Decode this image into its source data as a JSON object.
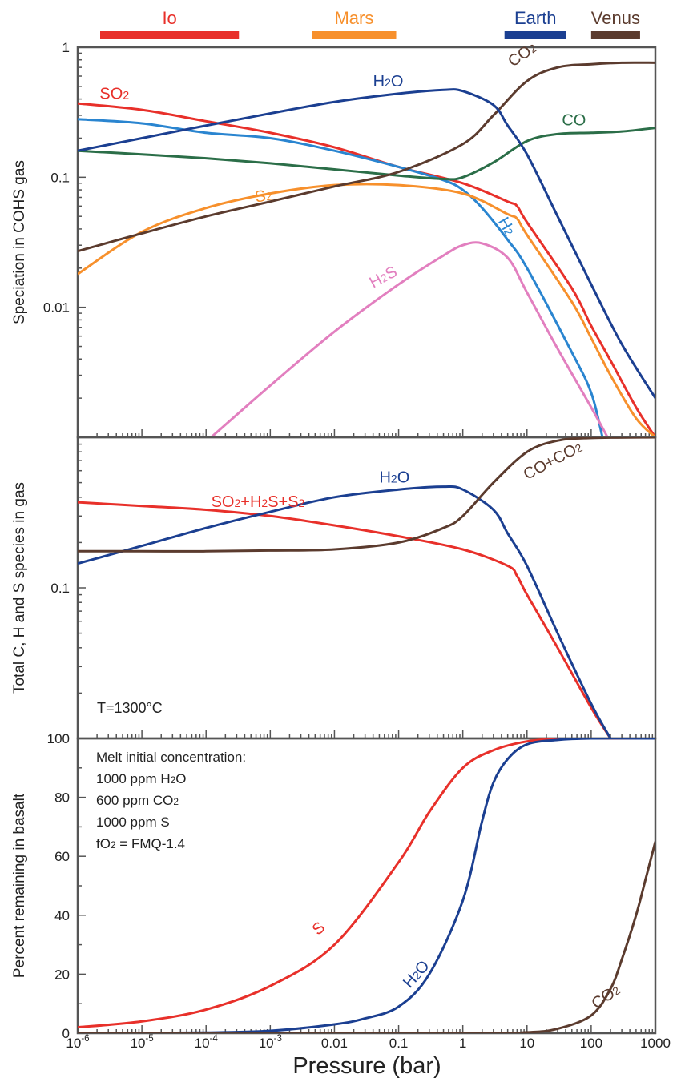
{
  "planets": [
    {
      "name": "Io",
      "color": "#e8302a",
      "range": [
        -6,
        -3.8
      ]
    },
    {
      "name": "Mars",
      "color": "#f7902c",
      "range": [
        -2.7,
        -1.35
      ]
    },
    {
      "name": "Earth",
      "color": "#1b3f91",
      "range": [
        0.3,
        1.3
      ]
    },
    {
      "name": "Venus",
      "color": "#5b3b2e",
      "range": [
        1.65,
        2.45
      ]
    }
  ],
  "x_axis": {
    "label": "Pressure (bar)",
    "ticks": [
      {
        "value": -6,
        "label_base": "10",
        "label_exp": "-6"
      },
      {
        "value": -5,
        "label_base": "10",
        "label_exp": "-5"
      },
      {
        "value": -4,
        "label_base": "10",
        "label_exp": "-4"
      },
      {
        "value": -3,
        "label_base": "10",
        "label_exp": "-3"
      },
      {
        "value": -2,
        "label_base": "0.01",
        "label_exp": ""
      },
      {
        "value": -1,
        "label_base": "0.1",
        "label_exp": ""
      },
      {
        "value": 0,
        "label_base": "1",
        "label_exp": ""
      },
      {
        "value": 1,
        "label_base": "10",
        "label_exp": ""
      },
      {
        "value": 2,
        "label_base": "100",
        "label_exp": ""
      },
      {
        "value": 3,
        "label_base": "1000",
        "label_exp": ""
      }
    ]
  },
  "chart_data": [
    {
      "type": "line",
      "panel": "top",
      "ylabel": "Speciation in COHS gas",
      "xscale": "log",
      "yscale": "log",
      "xlim": [
        1e-06,
        1000
      ],
      "ylim": [
        0.001,
        1
      ],
      "y_ticks": [
        {
          "value": 1,
          "label": "1"
        },
        {
          "value": 0.1,
          "label": "0.1"
        },
        {
          "value": 0.01,
          "label": "0.01"
        }
      ],
      "series": [
        {
          "name": "SO2",
          "label_main": "SO",
          "label_sub": "2",
          "color": "#e8302a",
          "x": [
            1e-06,
            1e-05,
            0.0001,
            0.001,
            0.01,
            0.1,
            1,
            5,
            7,
            10,
            50,
            100,
            200,
            500,
            1000
          ],
          "y": [
            0.37,
            0.33,
            0.27,
            0.22,
            0.17,
            0.12,
            0.09,
            0.065,
            0.06,
            0.045,
            0.014,
            0.0072,
            0.0039,
            0.0017,
            0.001
          ]
        },
        {
          "name": "H2",
          "label_main": "H",
          "label_sub": "2",
          "color": "#2a85d0",
          "x": [
            1e-06,
            1e-05,
            0.0001,
            0.001,
            0.01,
            0.1,
            0.5,
            1,
            2,
            5,
            10,
            50,
            100,
            150
          ],
          "y": [
            0.28,
            0.26,
            0.22,
            0.2,
            0.16,
            0.12,
            0.095,
            0.08,
            0.058,
            0.033,
            0.02,
            0.0045,
            0.0022,
            0.001
          ]
        },
        {
          "name": "CO",
          "label_main": "CO",
          "label_sub": "",
          "color": "#2b6e48",
          "x": [
            1e-06,
            1e-05,
            0.0001,
            0.001,
            0.01,
            0.1,
            0.5,
            1,
            3,
            10,
            30,
            100,
            300,
            1000
          ],
          "y": [
            0.16,
            0.15,
            0.14,
            0.128,
            0.115,
            0.103,
            0.097,
            0.1,
            0.13,
            0.19,
            0.215,
            0.22,
            0.225,
            0.24
          ]
        },
        {
          "name": "S2",
          "label_main": "S",
          "label_sub": "2",
          "color": "#f7902c",
          "x": [
            1e-06,
            1e-05,
            0.0001,
            0.001,
            0.01,
            0.1,
            1,
            5,
            7,
            10,
            50,
            100,
            200,
            500,
            1000
          ],
          "y": [
            0.018,
            0.038,
            0.058,
            0.075,
            0.087,
            0.087,
            0.075,
            0.052,
            0.048,
            0.036,
            0.011,
            0.0058,
            0.003,
            0.0014,
            0.001
          ]
        },
        {
          "name": "CO2",
          "label_main": "CO",
          "label_sub": "2",
          "color": "#5b3b2e",
          "x": [
            1e-06,
            1e-05,
            0.0001,
            0.001,
            0.01,
            0.1,
            1,
            3,
            10,
            30,
            100,
            300,
            1000
          ],
          "y": [
            0.027,
            0.037,
            0.05,
            0.065,
            0.085,
            0.11,
            0.18,
            0.3,
            0.55,
            0.7,
            0.74,
            0.76,
            0.76
          ]
        },
        {
          "name": "H2O",
          "label_main": "H",
          "label_sub": "2",
          "label_tail": "O",
          "color": "#1b3f91",
          "x": [
            1e-06,
            1e-05,
            0.0001,
            0.001,
            0.01,
            0.1,
            0.5,
            1,
            3,
            5,
            10,
            30,
            100,
            300,
            1000
          ],
          "y": [
            0.16,
            0.2,
            0.25,
            0.31,
            0.38,
            0.44,
            0.47,
            0.46,
            0.36,
            0.25,
            0.15,
            0.05,
            0.015,
            0.0052,
            0.002
          ]
        },
        {
          "name": "H2S",
          "label_main": "H",
          "label_sub": "2",
          "label_tail": "S",
          "color": "#e27fbf",
          "x": [
            0.00012,
            0.001,
            0.01,
            0.1,
            0.5,
            1,
            2,
            5,
            10,
            30,
            100,
            180
          ],
          "y": [
            0.001,
            0.0025,
            0.0065,
            0.015,
            0.025,
            0.03,
            0.031,
            0.024,
            0.013,
            0.0048,
            0.0017,
            0.001
          ]
        }
      ],
      "labels": [
        {
          "series": "SO2",
          "at": [
            2.2e-06,
            0.4
          ],
          "rotate": 0
        },
        {
          "series": "H2O",
          "at": [
            0.04,
            0.5
          ],
          "rotate": 0
        },
        {
          "series": "CO2",
          "at": [
            6,
            0.7
          ],
          "rotate": -35
        },
        {
          "series": "CO",
          "at": [
            35,
            0.25
          ],
          "rotate": 0
        },
        {
          "series": "S2",
          "at": [
            0.0006,
            0.064
          ],
          "rotate": -10
        },
        {
          "series": "H2",
          "at": [
            3.5,
            0.046
          ],
          "rotate": 60
        },
        {
          "series": "H2S",
          "at": [
            0.04,
            0.014
          ],
          "rotate": -28
        }
      ]
    },
    {
      "type": "line",
      "panel": "middle",
      "ylabel": "Total C, H and S species in gas",
      "xscale": "log",
      "yscale": "log",
      "xlim": [
        1e-06,
        1000
      ],
      "ylim": [
        0.01,
        1
      ],
      "y_ticks": [
        {
          "value": 0.1,
          "label": "0.1"
        }
      ],
      "annotation": "T=1300°C",
      "series": [
        {
          "name": "SO2+H2S+S2",
          "color": "#e8302a",
          "x": [
            1e-06,
            1e-05,
            0.0001,
            0.001,
            0.01,
            0.1,
            1,
            5,
            7,
            10,
            30,
            100,
            200
          ],
          "y": [
            0.37,
            0.35,
            0.33,
            0.3,
            0.26,
            0.22,
            0.18,
            0.14,
            0.12,
            0.09,
            0.04,
            0.016,
            0.01
          ]
        },
        {
          "name": "H2O",
          "color": "#1b3f91",
          "x": [
            1e-06,
            1e-05,
            0.0001,
            0.001,
            0.01,
            0.1,
            0.5,
            1,
            3,
            5,
            10,
            30,
            100,
            200
          ],
          "y": [
            0.145,
            0.19,
            0.25,
            0.32,
            0.4,
            0.45,
            0.47,
            0.45,
            0.33,
            0.23,
            0.14,
            0.05,
            0.017,
            0.01
          ]
        },
        {
          "name": "CO+CO2",
          "color": "#5b3b2e",
          "x": [
            1e-06,
            1e-05,
            0.0001,
            0.001,
            0.01,
            0.1,
            0.5,
            1,
            3,
            10,
            30,
            100,
            1000
          ],
          "y": [
            0.175,
            0.175,
            0.175,
            0.177,
            0.18,
            0.2,
            0.25,
            0.3,
            0.5,
            0.8,
            0.95,
            0.99,
            1.0
          ]
        }
      ],
      "labels": [
        {
          "series": "SO2+H2S+S2",
          "text_parts": [
            [
              "SO",
              "2"
            ],
            [
              "+H",
              "2"
            ],
            [
              "S+S",
              "2"
            ]
          ],
          "at": [
            0.00012,
            0.345
          ],
          "rotate": 0
        },
        {
          "series": "H2O",
          "text_parts": [
            [
              "H",
              "2"
            ],
            [
              "O",
              ""
            ]
          ],
          "at": [
            0.05,
            0.5
          ],
          "rotate": 0
        },
        {
          "series": "CO+CO2",
          "text_parts": [
            [
              "CO+CO",
              "2"
            ]
          ],
          "at": [
            10,
            0.52
          ],
          "rotate": -28
        }
      ]
    },
    {
      "type": "line",
      "panel": "bottom",
      "ylabel": "Percent remaining in basalt",
      "xscale": "log",
      "yscale": "linear",
      "xlim": [
        1e-06,
        1000
      ],
      "ylim": [
        0,
        100
      ],
      "y_ticks": [
        {
          "value": 0,
          "label": "0"
        },
        {
          "value": 20,
          "label": "20"
        },
        {
          "value": 40,
          "label": "40"
        },
        {
          "value": 60,
          "label": "60"
        },
        {
          "value": 80,
          "label": "80"
        },
        {
          "value": 100,
          "label": "100"
        }
      ],
      "series": [
        {
          "name": "S",
          "color": "#e8302a",
          "x": [
            1e-06,
            1e-05,
            0.0001,
            0.001,
            0.01,
            0.1,
            0.3,
            1,
            3,
            10,
            30,
            100,
            1000
          ],
          "y": [
            2,
            4,
            8,
            16,
            30,
            58,
            75,
            90,
            96,
            99,
            99.8,
            100,
            100
          ]
        },
        {
          "name": "H2O",
          "color": "#1b3f91",
          "x": [
            1e-06,
            0.0001,
            0.001,
            0.01,
            0.03,
            0.1,
            0.3,
            1,
            2,
            3,
            5,
            10,
            30,
            100,
            1000
          ],
          "y": [
            0,
            0.2,
            0.8,
            3,
            5,
            9,
            20,
            45,
            72,
            85,
            93,
            98,
            99.5,
            100,
            100
          ]
        },
        {
          "name": "CO2",
          "color": "#5b3b2e",
          "x": [
            1e-06,
            1,
            10,
            30,
            100,
            200,
            300,
            500,
            700,
            1000
          ],
          "y": [
            0,
            0,
            0.3,
            1.5,
            6,
            15,
            25,
            40,
            52,
            65
          ]
        }
      ],
      "labels": [
        {
          "series": "S",
          "text_parts": [
            [
              "S",
              ""
            ]
          ],
          "at": [
            0.0055,
            33
          ],
          "rotate": -40
        },
        {
          "series": "H2O",
          "text_parts": [
            [
              "H",
              "2"
            ],
            [
              "O",
              ""
            ]
          ],
          "at": [
            0.15,
            15
          ],
          "rotate": -48
        },
        {
          "series": "CO2",
          "text_parts": [
            [
              "CO",
              "2"
            ]
          ],
          "at": [
            120,
            8
          ],
          "rotate": -35
        }
      ],
      "legend_box": {
        "title": "Melt initial concentration:",
        "lines": [
          {
            "parts": [
              [
                "1000 ppm H",
                "2"
              ],
              [
                "O",
                ""
              ]
            ]
          },
          {
            "parts": [
              [
                "600 ppm CO",
                "2"
              ]
            ]
          },
          {
            "parts": [
              [
                "1000 ppm S",
                ""
              ]
            ]
          },
          {
            "parts": [
              [
                "fO",
                "2"
              ],
              [
                " = FMQ-1.4",
                ""
              ]
            ]
          }
        ]
      }
    }
  ]
}
